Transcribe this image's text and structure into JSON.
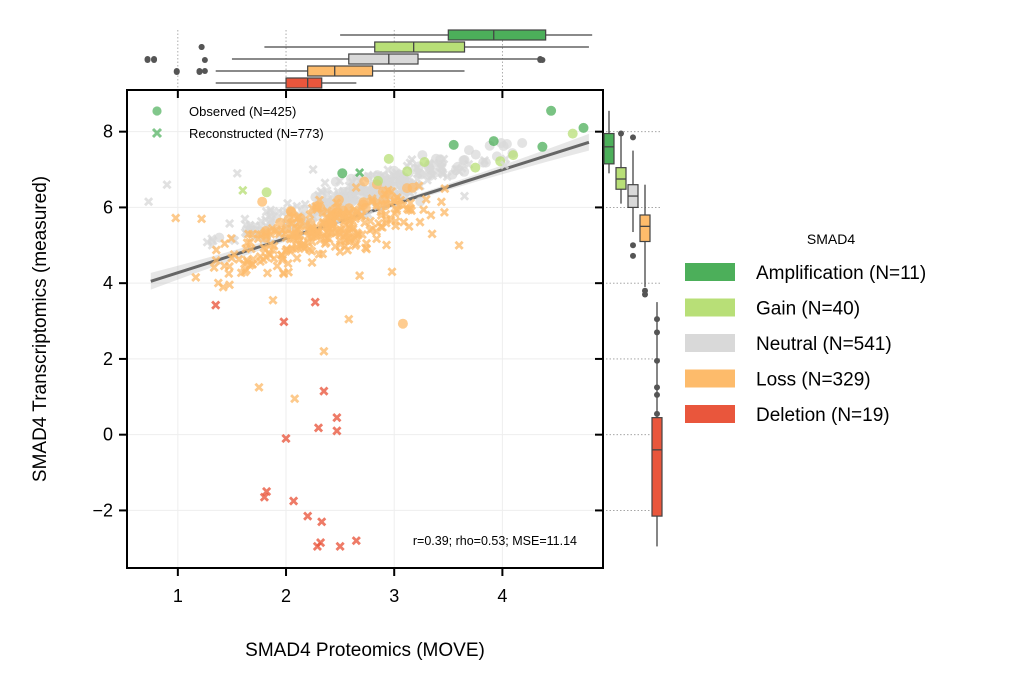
{
  "chart_data": {
    "type": "scatter",
    "xlabel": "SMAD4 Proteomics (MOVE)",
    "ylabel": "SMAD4 Transcriptomics (measured)",
    "xlim": [
      0.53,
      4.93
    ],
    "ylim": [
      -3.52,
      9.1
    ],
    "x_ticks": [
      1,
      2,
      3,
      4
    ],
    "y_ticks": [
      -2,
      0,
      2,
      4,
      6,
      8
    ],
    "x_tick_labels": [
      "1",
      "2",
      "3",
      "4"
    ],
    "y_tick_labels": [
      "−2",
      "0",
      "2",
      "4",
      "6",
      "8"
    ],
    "grid": true,
    "annotation": "r=0.39; rho=0.53; MSE=11.14",
    "marker_legend": {
      "observed": "Observed (N=425)",
      "reconstructed": "Reconstructed (N=773)",
      "placement": "top-left"
    },
    "regression": {
      "x": [
        0.75,
        4.8
      ],
      "y": [
        4.05,
        7.72
      ],
      "band_halfwidth_ends": 0.22,
      "band_halfwidth_mid": 0.06,
      "color": "#666666"
    },
    "groups": [
      {
        "name": "Amplification (N=11)",
        "color": "#4caf5a"
      },
      {
        "name": "Gain (N=40)",
        "color": "#b8df77"
      },
      {
        "name": "Neutral (N=541)",
        "color": "#d9d9d9"
      },
      {
        "name": "Loss (N=329)",
        "color": "#fdbb6b"
      },
      {
        "name": "Deletion (N=19)",
        "color": "#e9563c"
      }
    ],
    "legend_title": "SMAD4",
    "legend_placement": "right",
    "points_observed": [
      {
        "x": 4.45,
        "y": 8.55,
        "g": 0
      },
      {
        "x": 4.75,
        "y": 8.1,
        "g": 0
      },
      {
        "x": 3.92,
        "y": 7.75,
        "g": 0
      },
      {
        "x": 4.37,
        "y": 7.6,
        "g": 0
      },
      {
        "x": 3.55,
        "y": 7.65,
        "g": 0
      },
      {
        "x": 2.52,
        "y": 6.9,
        "g": 0
      },
      {
        "x": 4.65,
        "y": 7.95,
        "g": 1
      },
      {
        "x": 2.95,
        "y": 7.28,
        "g": 1
      },
      {
        "x": 3.28,
        "y": 7.2,
        "g": 1
      },
      {
        "x": 4.1,
        "y": 7.38,
        "g": 1
      },
      {
        "x": 3.98,
        "y": 7.22,
        "g": 1
      },
      {
        "x": 3.12,
        "y": 6.95,
        "g": 1
      },
      {
        "x": 1.82,
        "y": 6.4,
        "g": 1
      },
      {
        "x": 2.85,
        "y": 6.7,
        "g": 1
      },
      {
        "x": 3.75,
        "y": 7.05,
        "g": 1
      },
      {
        "x": 3.08,
        "y": 2.93,
        "g": 3
      },
      {
        "x": 1.78,
        "y": 6.15,
        "g": 3
      },
      {
        "x": 2.05,
        "y": 5.88,
        "g": 3
      },
      {
        "x": 2.4,
        "y": 5.55,
        "g": 3
      },
      {
        "x": 2.9,
        "y": 6.2,
        "g": 3
      }
    ],
    "points_reconstructed": [
      {
        "x": 2.35,
        "y": 1.15,
        "g": 4
      },
      {
        "x": 2.3,
        "y": 0.18,
        "g": 4
      },
      {
        "x": 2.47,
        "y": 0.45,
        "g": 4
      },
      {
        "x": 2.47,
        "y": 0.1,
        "g": 4
      },
      {
        "x": 2.0,
        "y": -0.1,
        "g": 4
      },
      {
        "x": 1.35,
        "y": 3.42,
        "g": 4
      },
      {
        "x": 1.98,
        "y": 2.98,
        "g": 4
      },
      {
        "x": 2.27,
        "y": 3.5,
        "g": 4
      },
      {
        "x": 1.82,
        "y": -1.5,
        "g": 4
      },
      {
        "x": 1.8,
        "y": -1.65,
        "g": 4
      },
      {
        "x": 2.07,
        "y": -1.75,
        "g": 4
      },
      {
        "x": 2.2,
        "y": -2.15,
        "g": 4
      },
      {
        "x": 2.33,
        "y": -2.3,
        "g": 4
      },
      {
        "x": 2.32,
        "y": -2.85,
        "g": 4
      },
      {
        "x": 2.29,
        "y": -2.95,
        "g": 4
      },
      {
        "x": 2.65,
        "y": -2.8,
        "g": 4
      },
      {
        "x": 2.5,
        "y": -2.95,
        "g": 4
      },
      {
        "x": 2.35,
        "y": 2.2,
        "g": 3
      },
      {
        "x": 1.75,
        "y": 1.25,
        "g": 3
      },
      {
        "x": 2.08,
        "y": 0.95,
        "g": 3
      },
      {
        "x": 2.58,
        "y": 3.05,
        "g": 3
      },
      {
        "x": 1.88,
        "y": 3.55,
        "g": 3
      },
      {
        "x": 2.68,
        "y": 4.2,
        "g": 3
      },
      {
        "x": 2.98,
        "y": 4.3,
        "g": 3
      },
      {
        "x": 3.6,
        "y": 5.0,
        "g": 3
      },
      {
        "x": 1.22,
        "y": 5.7,
        "g": 3
      },
      {
        "x": 0.98,
        "y": 5.72,
        "g": 3
      },
      {
        "x": 3.35,
        "y": 5.3,
        "g": 3
      },
      {
        "x": 0.73,
        "y": 6.15,
        "g": 2
      },
      {
        "x": 0.9,
        "y": 6.6,
        "g": 2
      },
      {
        "x": 1.55,
        "y": 6.9,
        "g": 2
      },
      {
        "x": 4.02,
        "y": 7.12,
        "g": 2
      },
      {
        "x": 3.65,
        "y": 6.3,
        "g": 2
      },
      {
        "x": 2.25,
        "y": 7.0,
        "g": 2
      },
      {
        "x": 1.6,
        "y": 6.45,
        "g": 1
      },
      {
        "x": 2.68,
        "y": 6.92,
        "g": 0
      }
    ],
    "scatter_clusters": [
      {
        "mode": "obs",
        "g": 2,
        "n": 110,
        "xmin": 1.3,
        "xmax": 4.5,
        "slope": 0.9,
        "intercept": 3.9,
        "sd": 0.55
      },
      {
        "mode": "rec",
        "g": 2,
        "n": 230,
        "xmin": 1.0,
        "xmax": 4.3,
        "slope": 0.9,
        "intercept": 3.85,
        "sd": 0.55
      },
      {
        "mode": "obs",
        "g": 3,
        "n": 35,
        "xmin": 1.4,
        "xmax": 3.6,
        "slope": 0.9,
        "intercept": 3.7,
        "sd": 0.6
      },
      {
        "mode": "rec",
        "g": 3,
        "n": 260,
        "xmin": 0.95,
        "xmax": 3.7,
        "slope": 0.9,
        "intercept": 3.25,
        "sd": 0.85
      }
    ],
    "marginal_top": [
      {
        "g": 0,
        "q1": 3.5,
        "med": 3.92,
        "q3": 4.4,
        "wlo": 2.5,
        "whi": 4.83,
        "fliers": []
      },
      {
        "g": 1,
        "q1": 2.82,
        "med": 3.18,
        "q3": 3.65,
        "wlo": 1.8,
        "whi": 4.8,
        "fliers": [
          1.22
        ]
      },
      {
        "g": 2,
        "q1": 2.58,
        "med": 2.95,
        "q3": 3.22,
        "wlo": 1.5,
        "whi": 4.35,
        "fliers": [
          0.72,
          0.78,
          4.35
        ]
      },
      {
        "g": 3,
        "q1": 2.2,
        "med": 2.45,
        "q3": 2.8,
        "wlo": 1.35,
        "whi": 3.65,
        "fliers": [
          0.99,
          1.2,
          1.25
        ]
      },
      {
        "g": 4,
        "q1": 2.0,
        "med": 2.2,
        "q3": 2.33,
        "wlo": 1.35,
        "whi": 2.65,
        "fliers": []
      }
    ],
    "marginal_right": [
      {
        "g": 0,
        "q1": 7.15,
        "med": 7.6,
        "q3": 7.95,
        "wlo": 6.9,
        "whi": 8.55,
        "fliers": []
      },
      {
        "g": 1,
        "q1": 6.48,
        "med": 6.75,
        "q3": 7.05,
        "wlo": 6.1,
        "whi": 7.9,
        "fliers": [
          7.95
        ]
      },
      {
        "g": 2,
        "q1": 6.0,
        "med": 6.3,
        "q3": 6.6,
        "wlo": 5.35,
        "whi": 7.5,
        "fliers": [
          5.0,
          4.72,
          7.85
        ]
      },
      {
        "g": 3,
        "q1": 5.1,
        "med": 5.5,
        "q3": 5.8,
        "wlo": 3.9,
        "whi": 6.6,
        "fliers": [
          3.7,
          3.8
        ]
      },
      {
        "g": 4,
        "q1": -2.15,
        "med": -0.4,
        "q3": 0.45,
        "wlo": -2.95,
        "whi": 3.5,
        "fliers": [
          3.05,
          2.7,
          1.95,
          1.25,
          1.05,
          0.55
        ]
      }
    ]
  }
}
